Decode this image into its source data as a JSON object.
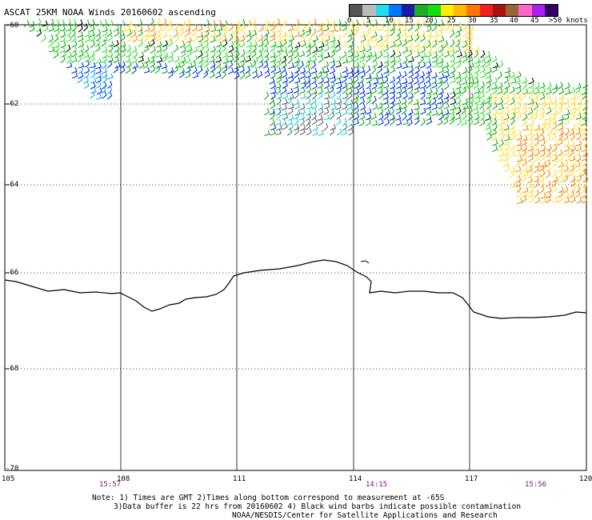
{
  "title": "ASCAT 25KM NOAA Winds 20160602 ascending",
  "legend": {
    "labels": [
      "0",
      "5",
      "10",
      "15",
      "20",
      "25",
      "30",
      "35",
      "40",
      "45",
      ">50 knots"
    ],
    "colors": [
      "#555555",
      "#bbbbbb",
      "#22ddee",
      "#0077ff",
      "#1a1aaa",
      "#22aa22",
      "#11dd11",
      "#ffee00",
      "#ffbb00",
      "#ff7700",
      "#ee2222",
      "#aa1111",
      "#996633",
      "#ff66cc",
      "#aa22ee",
      "#330066"
    ]
  },
  "lat_labels": [
    "-60",
    "-62",
    "-64",
    "-66",
    "-68",
    "-70"
  ],
  "lon_labels": [
    "105",
    "108",
    "111",
    "114",
    "117",
    "120"
  ],
  "times": [
    "15:57",
    "14:15",
    "15:56"
  ],
  "notes": {
    "line1": "Note: 1) Times are GMT 2)Times along bottom correspond to measurement at -65S",
    "line2": "3)Data buffer is 22 hrs from 20160602 4) Black wind barbs indicate possible contamination",
    "line3": "NOAA/NESDIS/Center for Satellite Applications and Research"
  },
  "wind_colors": {
    "blue": "#0033dd",
    "light_blue": "#11aaee",
    "green": "#11aa11",
    "bright_green": "#33dd33",
    "yellow": "#ffdd22",
    "orange": "#ee8811",
    "black": "#000000",
    "gray": "#666666",
    "cyan": "#22cccc"
  }
}
